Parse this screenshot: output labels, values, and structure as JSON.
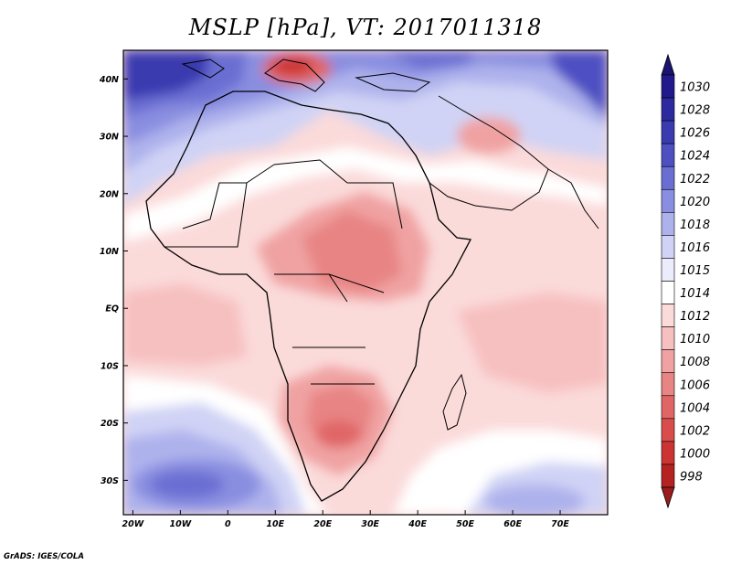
{
  "title": "MSLP [hPa], VT: 2017011318",
  "credit": "GrADS: IGES/COLA",
  "map": {
    "projection": "latlon",
    "lon_range": [
      -22,
      80
    ],
    "lat_range": [
      -36,
      45
    ],
    "lon_ticks": [
      {
        "value": -20,
        "label": "20W"
      },
      {
        "value": -10,
        "label": "10W"
      },
      {
        "value": 0,
        "label": "0"
      },
      {
        "value": 10,
        "label": "10E"
      },
      {
        "value": 20,
        "label": "20E"
      },
      {
        "value": 30,
        "label": "30E"
      },
      {
        "value": 40,
        "label": "40E"
      },
      {
        "value": 50,
        "label": "50E"
      },
      {
        "value": 60,
        "label": "60E"
      },
      {
        "value": 70,
        "label": "70E"
      }
    ],
    "lat_ticks": [
      {
        "value": 40,
        "label": "40N"
      },
      {
        "value": 30,
        "label": "30N"
      },
      {
        "value": 20,
        "label": "20N"
      },
      {
        "value": 10,
        "label": "10N"
      },
      {
        "value": 0,
        "label": "EQ"
      },
      {
        "value": -10,
        "label": "10S"
      },
      {
        "value": -20,
        "label": "20S"
      },
      {
        "value": -30,
        "label": "30S"
      }
    ]
  },
  "colorbar": {
    "levels": [
      {
        "label": "1030",
        "color": "#211a8c"
      },
      {
        "label": "1028",
        "color": "#2c2a9e"
      },
      {
        "label": "1026",
        "color": "#3a3bb0"
      },
      {
        "label": "1024",
        "color": "#4e50c2"
      },
      {
        "label": "1022",
        "color": "#6a6ed2"
      },
      {
        "label": "1020",
        "color": "#8a8ee0"
      },
      {
        "label": "1018",
        "color": "#aeb2ec"
      },
      {
        "label": "1016",
        "color": "#d0d3f5"
      },
      {
        "label": "1015",
        "color": "#ebedfc"
      },
      {
        "label": "1014",
        "color": "#ffffff"
      },
      {
        "label": "1012",
        "color": "#fbdada"
      },
      {
        "label": "1010",
        "color": "#f7c0c0"
      },
      {
        "label": "1008",
        "color": "#f0a2a2"
      },
      {
        "label": "1006",
        "color": "#e88484"
      },
      {
        "label": "1004",
        "color": "#e06666"
      },
      {
        "label": "1002",
        "color": "#d84c4c"
      },
      {
        "label": "1000",
        "color": "#cc3434"
      },
      {
        "label": "998",
        "color": "#b52222"
      }
    ],
    "top_arrow_color": "#1a1470",
    "bottom_arrow_color": "#9a1c1c"
  }
}
